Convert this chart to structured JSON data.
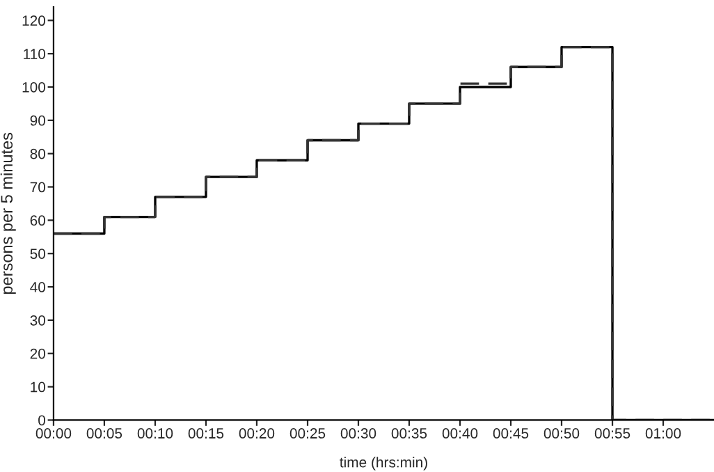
{
  "chart_data": {
    "type": "step",
    "xlabel": "time (hrs:min)",
    "ylabel": "persons per 5 minutes",
    "x": [
      0,
      0.0833,
      0.1667,
      0.25,
      0.3333,
      0.4167,
      0.5,
      0.5833,
      0.6667,
      0.75,
      0.8333,
      0.9167,
      1.0,
      1.0833
    ],
    "series": [
      {
        "color": "#000000",
        "line_style": "solid",
        "values": [
          56,
          61,
          67,
          73,
          78,
          84,
          89,
          95,
          100,
          106,
          112,
          0,
          0,
          0
        ]
      },
      {
        "color": "#333333",
        "line_style": "dashed",
        "values": [
          56,
          61,
          67,
          73,
          78,
          84,
          89,
          95,
          101,
          106,
          112,
          0,
          0,
          0
        ]
      }
    ],
    "xlim": [
      0,
      1.0833
    ],
    "ylim": [
      0,
      124
    ],
    "xticks": [
      {
        "value": 0,
        "label": "00:00"
      },
      {
        "value": 0.0833,
        "label": "00:05"
      },
      {
        "value": 0.1667,
        "label": "00:10"
      },
      {
        "value": 0.25,
        "label": "00:15"
      },
      {
        "value": 0.3333,
        "label": "00:20"
      },
      {
        "value": 0.4167,
        "label": "00:25"
      },
      {
        "value": 0.5,
        "label": "00:30"
      },
      {
        "value": 0.5833,
        "label": "00:35"
      },
      {
        "value": 0.6667,
        "label": "00:40"
      },
      {
        "value": 0.75,
        "label": "00:45"
      },
      {
        "value": 0.8333,
        "label": "00:50"
      },
      {
        "value": 0.9167,
        "label": "00:55"
      },
      {
        "value": 1.0,
        "label": "01:00"
      }
    ],
    "yticks": [
      0,
      10,
      20,
      30,
      40,
      50,
      60,
      70,
      80,
      90,
      100,
      110,
      120
    ],
    "grid": false,
    "legend": false,
    "marker": "none"
  }
}
